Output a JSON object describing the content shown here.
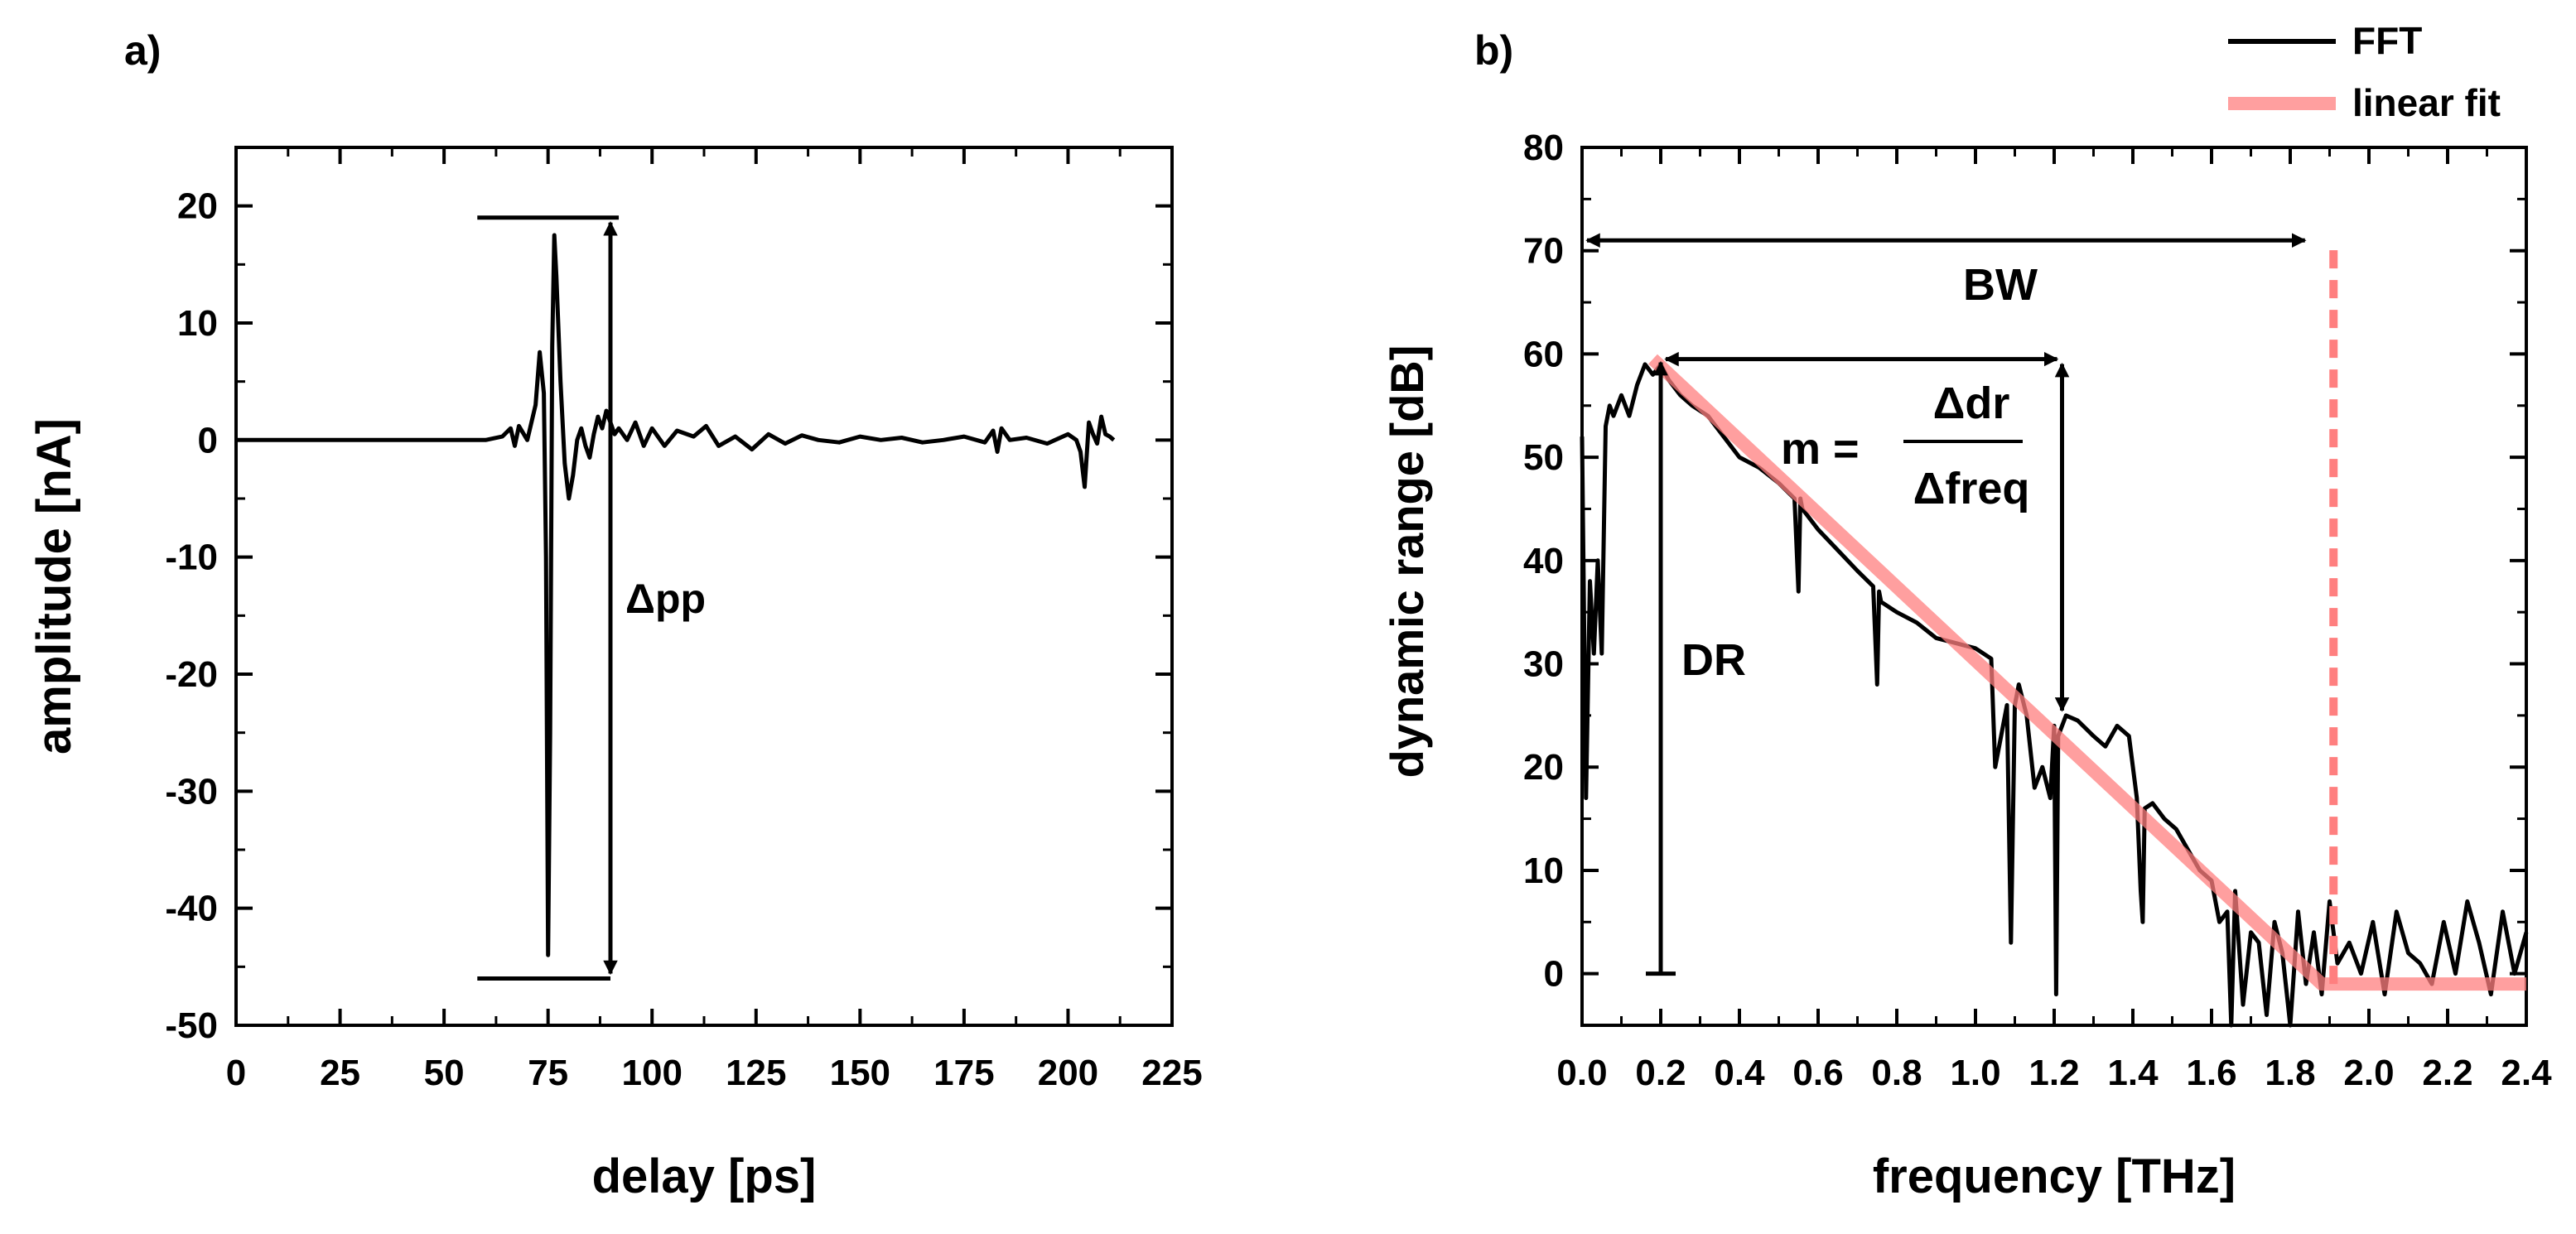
{
  "chart_data": [
    {
      "panel_label": "a)",
      "type": "line",
      "xlabel": "delay [ps]",
      "ylabel": "amplitude [nA]",
      "xlim": [
        0,
        225
      ],
      "ylim": [
        -50,
        25
      ],
      "xticks": [
        0,
        25,
        50,
        75,
        100,
        125,
        150,
        175,
        200,
        225
      ],
      "xtick_labels": [
        "0",
        "25",
        "50",
        "75",
        "100",
        "125",
        "150",
        "175",
        "200",
        "225"
      ],
      "yticks": [
        -50,
        -40,
        -30,
        -20,
        -10,
        0,
        10,
        20
      ],
      "ytick_labels": [
        "-50",
        "-40",
        "-30",
        "-20",
        "-10",
        "0",
        "10",
        "20"
      ],
      "grid": false,
      "color": "#000000",
      "series": [
        {
          "x": [
            0,
            20,
            40,
            60,
            64,
            66,
            67,
            68,
            70,
            72,
            73,
            74,
            74.5,
            75,
            75.5,
            76,
            76.5,
            77,
            78,
            79,
            80,
            81,
            82,
            83,
            84,
            85,
            86,
            87,
            88,
            89,
            90,
            91,
            92,
            94,
            96,
            98,
            100,
            103,
            106,
            110,
            113,
            116,
            120,
            124,
            128,
            132,
            136,
            140,
            145,
            150,
            155,
            160,
            165,
            170,
            175,
            180,
            182,
            183,
            184,
            186,
            190,
            195,
            200,
            202,
            203,
            204,
            205,
            206,
            207,
            208,
            209,
            210,
            211
          ],
          "y": [
            0,
            0,
            0,
            0,
            0.3,
            1,
            -0.5,
            1.2,
            0,
            3,
            7.5,
            4,
            -10,
            -44,
            -25,
            8,
            17.5,
            14,
            5,
            -2,
            -5,
            -3,
            0,
            1,
            -0.5,
            -1.5,
            0.5,
            2,
            1,
            2.5,
            1.5,
            0.5,
            1,
            0,
            1.5,
            -0.5,
            1,
            -0.5,
            0.8,
            0.3,
            1.2,
            -0.5,
            0.3,
            -0.8,
            0.5,
            -0.3,
            0.4,
            0,
            -0.2,
            0.3,
            0,
            0.2,
            -0.2,
            0,
            0.3,
            -0.2,
            0.8,
            -1,
            1,
            0,
            0.2,
            -0.3,
            0.5,
            0,
            -1,
            -4,
            1.5,
            0.5,
            -0.3,
            2,
            0.5,
            0.3,
            0
          ],
          "annotations": [
            {
              "type": "hline",
              "y": 19,
              "x0": 58,
              "x1": 92
            },
            {
              "type": "hline",
              "y": -46,
              "x0": 58,
              "x1": 90
            },
            {
              "type": "double-arrow",
              "x": 90,
              "y0": 19,
              "y1": -46
            }
          ]
        }
      ],
      "annotations_text": [
        "Δpp"
      ]
    },
    {
      "panel_label": "b)",
      "type": "line",
      "xlabel": "frequency [THz]",
      "ylabel": "dynamic range [dB]",
      "xlim": [
        0.0,
        2.4
      ],
      "ylim": [
        -5,
        80
      ],
      "xticks": [
        0.0,
        0.2,
        0.4,
        0.6,
        0.8,
        1.0,
        1.2,
        1.4,
        1.6,
        1.8,
        2.0,
        2.2,
        2.4
      ],
      "xtick_labels": [
        "0.0",
        "0.2",
        "0.4",
        "0.6",
        "0.8",
        "1.0",
        "1.2",
        "1.4",
        "1.6",
        "1.8",
        "2.0",
        "2.2",
        "2.4"
      ],
      "yticks": [
        0,
        10,
        20,
        30,
        40,
        50,
        60,
        70,
        80
      ],
      "ytick_labels": [
        "0",
        "10",
        "20",
        "30",
        "40",
        "50",
        "60",
        "70",
        "80"
      ],
      "grid": false,
      "legend": {
        "position": "top-right",
        "entries": [
          "FFT",
          "linear fit"
        ]
      },
      "series": [
        {
          "name": "FFT",
          "color": "#000000",
          "x": [
            0.0,
            0.01,
            0.02,
            0.03,
            0.04,
            0.05,
            0.06,
            0.07,
            0.08,
            0.1,
            0.12,
            0.14,
            0.16,
            0.18,
            0.2,
            0.22,
            0.25,
            0.28,
            0.32,
            0.36,
            0.4,
            0.45,
            0.5,
            0.54,
            0.55,
            0.555,
            0.56,
            0.6,
            0.65,
            0.7,
            0.74,
            0.75,
            0.755,
            0.76,
            0.8,
            0.85,
            0.9,
            0.95,
            1.0,
            1.04,
            1.05,
            1.08,
            1.09,
            1.1,
            1.11,
            1.13,
            1.15,
            1.17,
            1.19,
            1.2,
            1.205,
            1.21,
            1.23,
            1.26,
            1.3,
            1.33,
            1.36,
            1.39,
            1.41,
            1.42,
            1.425,
            1.43,
            1.45,
            1.48,
            1.51,
            1.54,
            1.57,
            1.6,
            1.62,
            1.64,
            1.65,
            1.66,
            1.68,
            1.7,
            1.72,
            1.74,
            1.76,
            1.78,
            1.8,
            1.82,
            1.84,
            1.86,
            1.88,
            1.9,
            1.92,
            1.95,
            1.98,
            2.01,
            2.04,
            2.07,
            2.1,
            2.13,
            2.16,
            2.19,
            2.22,
            2.25,
            2.28,
            2.31,
            2.34,
            2.37,
            2.4
          ],
          "y": [
            52,
            17,
            38,
            31,
            40,
            31,
            53,
            55,
            54,
            56,
            54,
            57,
            59,
            58,
            59,
            57.5,
            56,
            55,
            54,
            52,
            50,
            49,
            47.5,
            46,
            37,
            46,
            45,
            43,
            41,
            39,
            37.5,
            28,
            37,
            36,
            35,
            34,
            32.5,
            32,
            31.5,
            30.5,
            20,
            26,
            3,
            26,
            28,
            25,
            18,
            20,
            17,
            24,
            -2,
            23,
            25,
            24.5,
            23,
            22,
            24,
            23,
            17,
            8,
            5,
            16,
            16.5,
            15,
            14,
            12,
            10,
            9,
            5,
            6,
            -5,
            8,
            -3,
            4,
            3,
            -4,
            5,
            2,
            -5,
            6,
            -1,
            4,
            -2,
            7,
            1,
            3,
            0,
            5,
            -2,
            6,
            2,
            1,
            -1,
            5,
            0,
            7,
            3,
            -2,
            6,
            0,
            4
          ]
        },
        {
          "name": "linear fit",
          "color": "#ff7f7f",
          "x": [
            0.18,
            1.88,
            1.9,
            2.4
          ],
          "y": [
            59.5,
            -1,
            -1,
            -1
          ]
        }
      ],
      "annotations": [
        {
          "type": "double-arrow",
          "y": 71,
          "x0": 0.0,
          "x1": 1.85
        },
        {
          "type": "double-arrow",
          "y": 59.5,
          "x0": 0.2,
          "x1": 1.22
        },
        {
          "type": "double-arrow",
          "x": 1.22,
          "y0": 59.5,
          "y1": 25
        },
        {
          "type": "arrow-up",
          "x": 0.2,
          "y0": 0,
          "y1": 59.5
        },
        {
          "type": "vline-dashed",
          "x": 1.91,
          "y0": -1,
          "y1": 71,
          "color": "#ff7f7f"
        }
      ],
      "annotations_text": {
        "bw": "BW",
        "dr": "DR",
        "m_lhs": "m =",
        "m_num": "Δdr",
        "m_den": "Δfreq"
      }
    }
  ]
}
